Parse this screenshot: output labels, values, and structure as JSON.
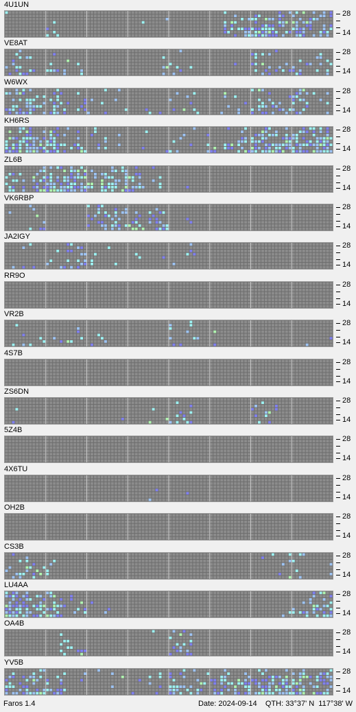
{
  "app": {
    "version_label": "Faros 1.4"
  },
  "footer": {
    "date_label": "Date:",
    "date": "2024-09-14",
    "qth_label": "QTH:",
    "qth": "33°37' N  117°38' W"
  },
  "scale": {
    "top": "28",
    "bottom": "14"
  },
  "colors": {
    "grid_bg": "#6e6e6e",
    "cell": "#8c8c8c",
    "weak": "#8080f0",
    "mid": "#9ec4f4",
    "strong": "#9ef2f2",
    "very_strong": "#b0f4b0"
  },
  "stations": [
    {
      "call": "4U1UN",
      "activity": [
        0.1,
        0.05,
        0.0,
        0.0,
        0.0,
        0.05,
        0.0,
        0.0,
        0.45,
        0.7,
        0.55,
        0.4
      ]
    },
    {
      "call": "VE8AT",
      "activity": [
        0.3,
        0.15,
        0.05,
        0.0,
        0.0,
        0.05,
        0.1,
        0.0,
        0.1,
        0.25,
        0.3,
        0.15
      ]
    },
    {
      "call": "W6WX",
      "activity": [
        0.55,
        0.45,
        0.2,
        0.1,
        0.05,
        0.05,
        0.1,
        0.05,
        0.25,
        0.35,
        0.3,
        0.15
      ]
    },
    {
      "call": "KH6RS",
      "activity": [
        0.7,
        0.55,
        0.25,
        0.15,
        0.1,
        0.05,
        0.05,
        0.05,
        0.4,
        0.7,
        0.75,
        0.7
      ]
    },
    {
      "call": "ZL6B",
      "activity": [
        0.2,
        0.65,
        0.7,
        0.45,
        0.35,
        0.15,
        0.05,
        0.0,
        0.0,
        0.0,
        0.0,
        0.0
      ]
    },
    {
      "call": "VK6RBP",
      "activity": [
        0.05,
        0.05,
        0.0,
        0.3,
        0.4,
        0.25,
        0.05,
        0.0,
        0.0,
        0.0,
        0.0,
        0.0
      ]
    },
    {
      "call": "JA2IGY",
      "activity": [
        0.1,
        0.1,
        0.2,
        0.1,
        0.05,
        0.05,
        0.15,
        0.0,
        0.0,
        0.0,
        0.0,
        0.0
      ]
    },
    {
      "call": "RR9O",
      "activity": [
        0,
        0,
        0,
        0,
        0,
        0,
        0,
        0,
        0,
        0,
        0,
        0
      ]
    },
    {
      "call": "VR2B",
      "activity": [
        0.05,
        0.05,
        0.1,
        0.05,
        0.0,
        0.0,
        0.15,
        0.05,
        0.0,
        0.0,
        0.0,
        0.05
      ]
    },
    {
      "call": "4S7B",
      "activity": [
        0,
        0,
        0,
        0,
        0,
        0,
        0,
        0,
        0,
        0,
        0,
        0
      ]
    },
    {
      "call": "ZS6DN",
      "activity": [
        0.05,
        0.0,
        0.0,
        0.0,
        0.05,
        0.1,
        0.15,
        0.0,
        0.0,
        0.25,
        0.0,
        0.0
      ]
    },
    {
      "call": "5Z4B",
      "activity": [
        0,
        0,
        0,
        0,
        0,
        0,
        0,
        0,
        0,
        0,
        0,
        0
      ]
    },
    {
      "call": "4X6TU",
      "activity": [
        0.0,
        0.0,
        0.0,
        0.0,
        0.0,
        0.05,
        0.05,
        0.0,
        0.0,
        0.0,
        0.0,
        0.0
      ]
    },
    {
      "call": "OH2B",
      "activity": [
        0,
        0,
        0,
        0,
        0,
        0,
        0,
        0,
        0,
        0,
        0,
        0
      ]
    },
    {
      "call": "CS3B",
      "activity": [
        0.2,
        0.15,
        0.0,
        0.0,
        0.0,
        0.0,
        0.0,
        0.0,
        0.0,
        0.05,
        0.1,
        0.05
      ]
    },
    {
      "call": "LU4AA",
      "activity": [
        0.7,
        0.55,
        0.25,
        0.05,
        0.0,
        0.0,
        0.0,
        0.0,
        0.0,
        0.05,
        0.1,
        0.45
      ]
    },
    {
      "call": "OA4B",
      "activity": [
        0.0,
        0.0,
        0.15,
        0.0,
        0.0,
        0.05,
        0.15,
        0.0,
        0.0,
        0.0,
        0.0,
        0.0
      ]
    },
    {
      "call": "YV5B",
      "activity": [
        0.55,
        0.4,
        0.2,
        0.05,
        0.05,
        0.15,
        0.45,
        0.25,
        0.4,
        0.55,
        0.6,
        0.4
      ]
    }
  ]
}
